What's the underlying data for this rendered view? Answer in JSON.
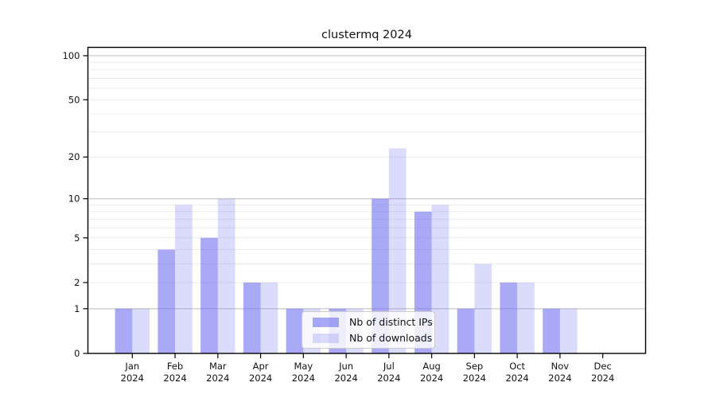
{
  "chart_data": {
    "type": "bar",
    "title": "clustermq 2024",
    "categories": [
      "Jan 2024",
      "Feb 2024",
      "Mar 2024",
      "Apr 2024",
      "May 2024",
      "Jun 2024",
      "Jul 2024",
      "Aug 2024",
      "Sep 2024",
      "Oct 2024",
      "Nov 2024",
      "Dec 2024"
    ],
    "series": [
      {
        "name": "Nb of distinct IPs",
        "values": [
          1,
          4,
          5,
          2,
          1,
          1,
          10,
          8,
          1,
          2,
          1,
          0
        ],
        "color": "rgba(112,112,240,0.6)"
      },
      {
        "name": "Nb of downloads",
        "values": [
          1,
          9,
          10,
          2,
          1,
          1,
          23,
          9,
          3,
          2,
          1,
          0
        ],
        "color": "rgba(112,112,240,0.25)"
      }
    ],
    "xlabel": "",
    "ylabel": "",
    "yscale": "log1p",
    "ylim": [
      0,
      114
    ],
    "ytick_values": [
      0,
      1,
      2,
      5,
      10,
      20,
      50,
      100
    ],
    "ytick_labels": [
      "0",
      "1",
      "2",
      "5",
      "10",
      "20",
      "50",
      "100"
    ],
    "gridlines": {
      "major_values": [
        1,
        10,
        100
      ],
      "minor_values": [
        2,
        3,
        4,
        5,
        6,
        7,
        8,
        9,
        20,
        30,
        40,
        50,
        60,
        70,
        80,
        90
      ],
      "major_color": "#c3c3c3",
      "minor_color": "#ececec"
    },
    "legend_position": "lower-center-inside",
    "grid_on": true,
    "colors": {
      "axis": "#000000",
      "text": "#111111",
      "background": "#ffffff",
      "bar_base": "#7070f0"
    }
  }
}
